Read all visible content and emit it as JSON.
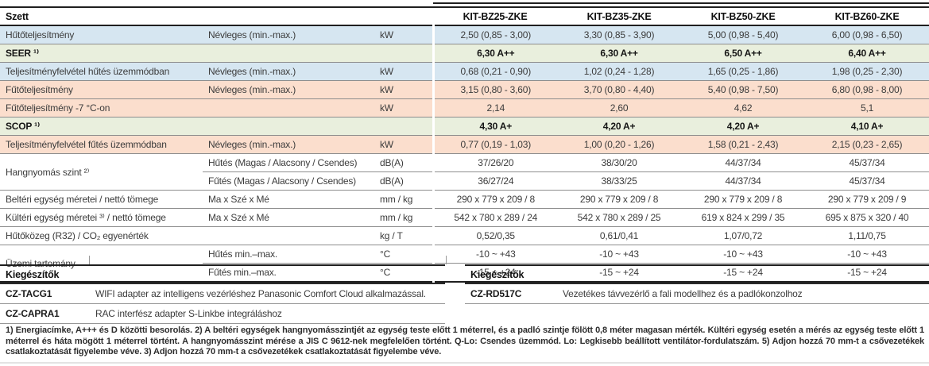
{
  "colors": {
    "blue": "#d6e6f1",
    "green": "#e9efdd",
    "orange": "#fbdecd",
    "rule_black": "#1f1f1f",
    "rule_gray": "#8d8d8d"
  },
  "header": {
    "label": "Szett",
    "models": [
      "KIT-BZ25-ZKE",
      "KIT-BZ35-ZKE",
      "KIT-BZ50-ZKE",
      "KIT-BZ60-ZKE"
    ]
  },
  "spec_rows": [
    {
      "label": "Hűtőteljesítmény",
      "sublabel": "Névleges (min.-max.)",
      "unit": "kW",
      "bg": "blue",
      "values": [
        "2,50 (0,85 - 3,00)",
        "3,30 (0,85 - 3,90)",
        "5,00 (0,98 - 5,40)",
        "6,00 (0,98 - 6,50)"
      ]
    },
    {
      "label": "SEER ¹⁾",
      "span_label": true,
      "bold": true,
      "bg": "green",
      "values": [
        "6,30 A++",
        "6,30 A++",
        "6,50 A++",
        "6,40 A++"
      ]
    },
    {
      "label": "Teljesítményfelvétel hűtés üzemmódban",
      "sublabel": "Névleges (min.-max.)",
      "unit": "kW",
      "bg": "blue",
      "values": [
        "0,68 (0,21 - 0,90)",
        "1,02 (0,24 - 1,28)",
        "1,65 (0,25 - 1,86)",
        "1,98 (0,25 - 2,30)"
      ]
    },
    {
      "label": "Fűtőteljesítmény",
      "sublabel": "Névleges (min.-max.)",
      "unit": "kW",
      "bg": "orange",
      "values": [
        "3,15 (0,80 - 3,60)",
        "3,70 (0,80 - 4,40)",
        "5,40 (0,98 - 7,50)",
        "6,80 (0,98 - 8,00)"
      ]
    },
    {
      "label": "Fűtőteljesítmény -7 °C-on",
      "sublabel": "",
      "unit": "kW",
      "bg": "orange",
      "values": [
        "2,14",
        "2,60",
        "4,62",
        "5,1"
      ]
    },
    {
      "label": "SCOP ¹⁾",
      "span_label": true,
      "bold": true,
      "bg": "green",
      "values": [
        "4,30 A+",
        "4,20 A+",
        "4,20 A+",
        "4,10 A+"
      ]
    },
    {
      "label": "Teljesítményfelvétel fűtés üzemmódban",
      "sublabel": "Névleges (min.-max.)",
      "unit": "kW",
      "bg": "orange",
      "values": [
        "0,77 (0,19 - 1,03)",
        "1,00 (0,20 - 1,26)",
        "1,58 (0,21 - 2,43)",
        "2,15 (0,23 - 2,65)"
      ]
    },
    {
      "label": "Hangnyomás szint ²⁾",
      "label_rowspan": 2,
      "sublabel": "Hűtés (Magas / Alacsony / Csendes)",
      "unit": "dB(A)",
      "bg": "white",
      "values": [
        "37/26/20",
        "38/30/20",
        "44/37/34",
        "45/37/34"
      ]
    },
    {
      "continuation": true,
      "sublabel": "Fűtés (Magas / Alacsony / Csendes)",
      "unit": "dB(A)",
      "bg": "white",
      "values": [
        "36/27/24",
        "38/33/25",
        "44/37/34",
        "45/37/34"
      ]
    },
    {
      "label": "Beltéri egység méretei / nettó tömege",
      "sublabel": "Ma x Szé x Mé",
      "unit": "mm / kg",
      "bg": "white",
      "values": [
        "290 x 779 x 209 / 8",
        "290 x 779 x 209 / 8",
        "290 x 779 x 209 / 8",
        "290 x 779 x 209 / 9"
      ]
    },
    {
      "label": "Kültéri egység méretei ³⁾ / nettó tömege",
      "sublabel": "Ma x Szé x Mé",
      "unit": "mm / kg",
      "bg": "white",
      "values": [
        "542 x 780 x 289 / 24",
        "542 x 780 x 289 / 25",
        "619 x 824 x 299 / 35",
        "695 x 875 x 320 / 40"
      ]
    },
    {
      "label": "Hűtőközeg (R32) / CO₂ egyenérték",
      "sublabel": "",
      "unit": "kg / T",
      "bg": "white",
      "values": [
        "0,52/0,35",
        "0,61/0,41",
        "1,07/0,72",
        "1,11/0,75"
      ]
    },
    {
      "label": "Üzemi tartomány",
      "label_rowspan": 2,
      "sublabel": "Hűtés min.–max.",
      "unit": "°C",
      "bg": "white",
      "values": [
        "-10 ~ +43",
        "-10 ~ +43",
        "-10 ~ +43",
        "-10 ~ +43"
      ]
    },
    {
      "continuation": true,
      "sublabel": "Fűtés min.–max.",
      "unit": "°C",
      "bg": "white",
      "values": [
        "-15 ~ +24",
        "-15 ~ +24",
        "-15 ~ +24",
        "-15 ~ +24"
      ]
    }
  ],
  "accessories_left": {
    "title": "Kiegészítők",
    "items": [
      {
        "code": "CZ-TACG1",
        "description": "WIFI adapter az intelligens vezérléshez Panasonic Comfort Cloud alkalmazással."
      },
      {
        "code": "CZ-CAPRA1",
        "description": "RAC interfész adapter S-Linkbe integráláshoz"
      }
    ]
  },
  "accessories_right": {
    "title": "Kiegészítők",
    "items": [
      {
        "code": "CZ-RD517C",
        "description": "Vezetékes távvezérlő a fali modellhez és a padlókonzolhoz"
      }
    ]
  },
  "footnotes": "1) Energiacímke, A+++ és D közötti besorolás. 2) A beltéri egységek hangnyomásszintjét az egység teste előtt 1 méterrel, és a padló szintje fölött 0,8 méter magasan mérték. Kültéri egység esetén a mérés az egység teste előtt 1 méterrel és háta mögött 1 méterrel történt. A hangnyomásszint mérése a JIS C 9612-nek megfelelően történt. Q-Lo: Csendes üzemmód. Lo: Legkisebb beállított ventilátor-fordulatszám. 5) Adjon hozzá 70 mm-t a csővezetékek csatlakoztatását figyelembe véve. 3) Adjon hozzá 70 mm-t a csővezetékek csatlakoztatását figyelembe véve."
}
